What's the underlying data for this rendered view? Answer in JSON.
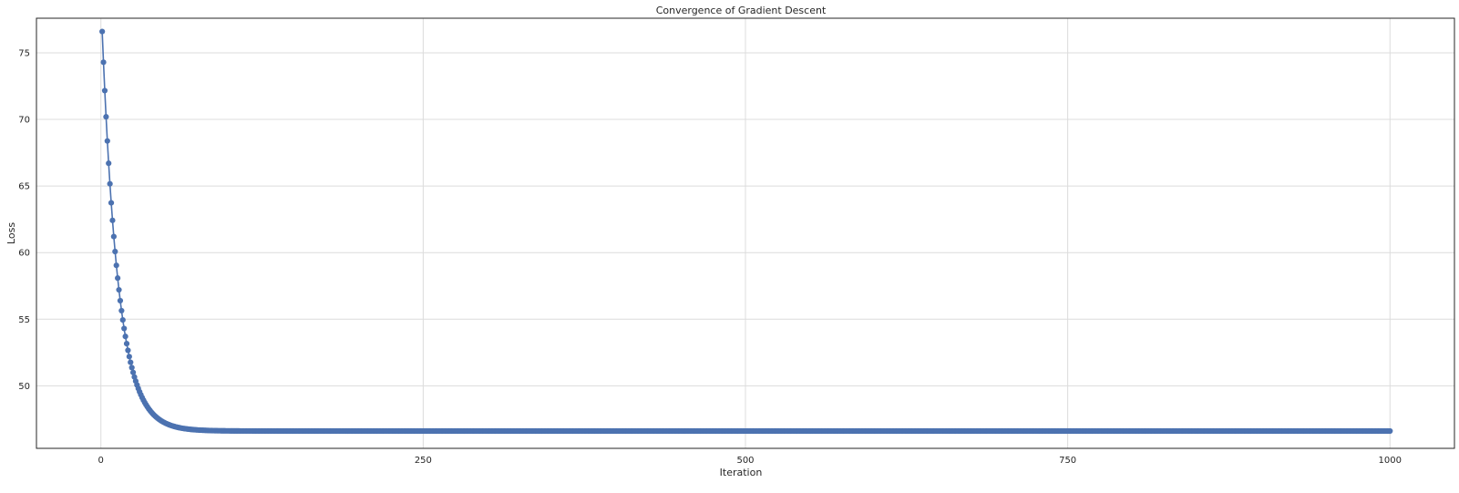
{
  "chart_data": {
    "type": "line",
    "title": "Convergence of Gradient Descent",
    "xlabel": "Iteration",
    "ylabel": "Loss",
    "xlim": [
      -50,
      1050
    ],
    "ylim": [
      45.3,
      77.6
    ],
    "xticks": [
      0,
      250,
      500,
      750,
      1000
    ],
    "yticks": [
      50,
      55,
      60,
      65,
      70,
      75
    ],
    "grid": true,
    "marker": "circle",
    "series": [
      {
        "color": "#4c72b0",
        "model": {
          "form": "exponential_decay",
          "n": 1000,
          "start_x": 1,
          "initial": 76.6,
          "asymptote": 46.6,
          "rate": 0.08
        }
      }
    ]
  }
}
